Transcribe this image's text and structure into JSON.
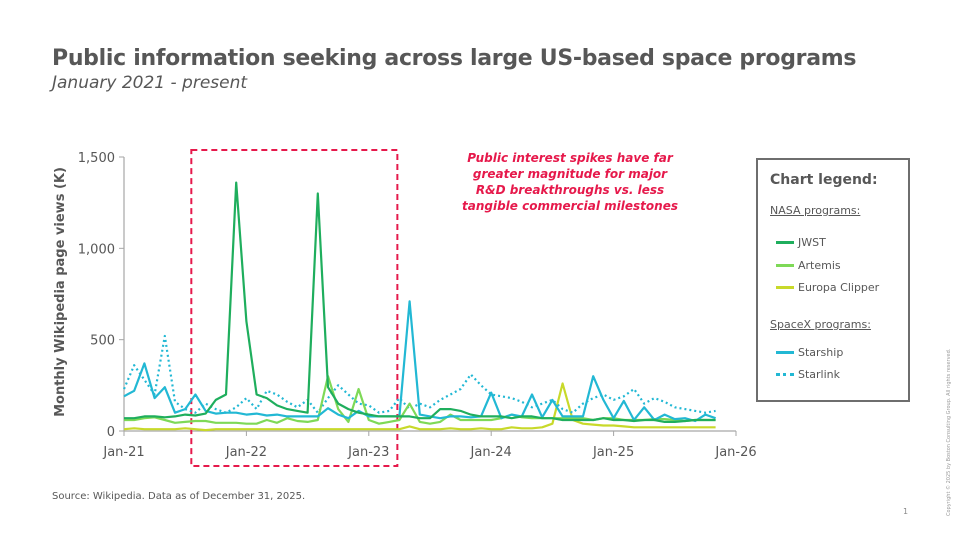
{
  "title": "Public information seeking across large US-based space programs",
  "subtitle": "January 2021 - present",
  "source": "Source: Wikipedia. Data as of December 31, 2025.",
  "page_number": "1",
  "copyright": "Copyright © 2025 by Boston Consulting Group. All rights reserved.",
  "annotation": {
    "lines": [
      "Public interest spikes have far",
      "greater magnitude for major",
      "R&D breakthroughs vs. less",
      "tangible commercial milestones"
    ],
    "highlight_range": [
      "Sep-21",
      "Aug-23"
    ],
    "color": "#e6194b"
  },
  "legend": {
    "title": "Chart legend:",
    "groups": [
      {
        "label": "NASA programs:",
        "items": [
          {
            "label": "JWST",
            "color": "#1fae5d",
            "style": "solid"
          },
          {
            "label": "Artemis",
            "color": "#7ed957",
            "style": "solid"
          },
          {
            "label": "Europa Clipper",
            "color": "#c8d92a",
            "style": "solid"
          }
        ]
      },
      {
        "label": "SpaceX programs:",
        "items": [
          {
            "label": "Starship",
            "color": "#22b8d4",
            "style": "solid"
          },
          {
            "label": "Starlink",
            "color": "#22b8d4",
            "style": "dotted"
          }
        ]
      }
    ]
  },
  "chart_data": {
    "type": "line",
    "title": "Public information seeking across large US-based space programs",
    "xlabel": "",
    "ylabel": "Monthly Wikipedia page views (K)",
    "ylim": [
      0,
      1500
    ],
    "yticks": [
      0,
      500,
      1000,
      1500
    ],
    "ytick_labels": [
      "0",
      "500",
      "1,000",
      "1,500"
    ],
    "x_start": "Jan-21",
    "xticks": [
      "Jan-21",
      "Jan-22",
      "Jan-23",
      "Jan-24",
      "Jan-25",
      "Jan-26"
    ],
    "xlim_months": [
      0,
      60
    ],
    "grid": false,
    "legend_position": "right",
    "series": [
      {
        "name": "JWST",
        "color": "#1fae5d",
        "style": "solid",
        "values": [
          70,
          70,
          80,
          80,
          75,
          80,
          90,
          85,
          95,
          170,
          200,
          1360,
          600,
          200,
          180,
          140,
          120,
          110,
          100,
          1300,
          240,
          150,
          120,
          100,
          90,
          80,
          80,
          80,
          80,
          70,
          70,
          120,
          120,
          110,
          90,
          80,
          80,
          80,
          70,
          80,
          80,
          70,
          70,
          60,
          60,
          60,
          60,
          70,
          60,
          60,
          55,
          60,
          60,
          50,
          50,
          55,
          60,
          60,
          60
        ]
      },
      {
        "name": "Artemis",
        "color": "#7ed957",
        "style": "solid",
        "values": [
          60,
          60,
          70,
          75,
          60,
          45,
          50,
          55,
          55,
          45,
          45,
          45,
          40,
          40,
          60,
          45,
          70,
          55,
          50,
          60,
          300,
          120,
          50,
          230,
          60,
          40,
          50,
          60,
          150,
          50,
          40,
          50,
          90,
          60,
          60,
          60,
          60,
          70,
          90,
          75,
          70,
          70,
          70,
          70,
          70,
          70,
          60,
          70,
          70,
          60,
          60,
          60,
          65,
          65,
          60,
          55,
          60,
          60,
          60
        ]
      },
      {
        "name": "Europa Clipper",
        "color": "#c8d92a",
        "style": "solid",
        "values": [
          10,
          15,
          10,
          10,
          10,
          10,
          15,
          10,
          5,
          10,
          10,
          10,
          10,
          10,
          10,
          10,
          10,
          10,
          10,
          10,
          10,
          10,
          10,
          10,
          10,
          10,
          10,
          10,
          25,
          10,
          10,
          10,
          15,
          10,
          10,
          15,
          10,
          10,
          20,
          15,
          15,
          20,
          40,
          260,
          60,
          40,
          35,
          30,
          30,
          25,
          20,
          20,
          20,
          20,
          20,
          20,
          20,
          20,
          20
        ]
      },
      {
        "name": "Starship",
        "color": "#22b8d4",
        "style": "solid",
        "values": [
          190,
          220,
          370,
          180,
          240,
          100,
          120,
          200,
          110,
          95,
          100,
          100,
          90,
          95,
          85,
          90,
          80,
          80,
          80,
          80,
          125,
          90,
          70,
          110,
          80,
          80,
          80,
          80,
          710,
          90,
          80,
          70,
          80,
          80,
          75,
          80,
          210,
          70,
          90,
          80,
          200,
          75,
          170,
          80,
          80,
          80,
          300,
          170,
          70,
          165,
          60,
          130,
          60,
          90,
          65,
          70,
          55,
          90,
          70
        ]
      },
      {
        "name": "Starlink",
        "color": "#22b8d4",
        "style": "dotted",
        "values": [
          230,
          360,
          280,
          200,
          520,
          160,
          120,
          100,
          150,
          120,
          100,
          130,
          180,
          120,
          220,
          200,
          160,
          130,
          170,
          100,
          180,
          250,
          200,
          150,
          140,
          100,
          110,
          180,
          120,
          150,
          130,
          170,
          200,
          230,
          310,
          250,
          200,
          190,
          180,
          160,
          130,
          150,
          170,
          120,
          100,
          150,
          180,
          200,
          170,
          190,
          230,
          150,
          180,
          160,
          130,
          120,
          110,
          100,
          110
        ]
      }
    ]
  }
}
